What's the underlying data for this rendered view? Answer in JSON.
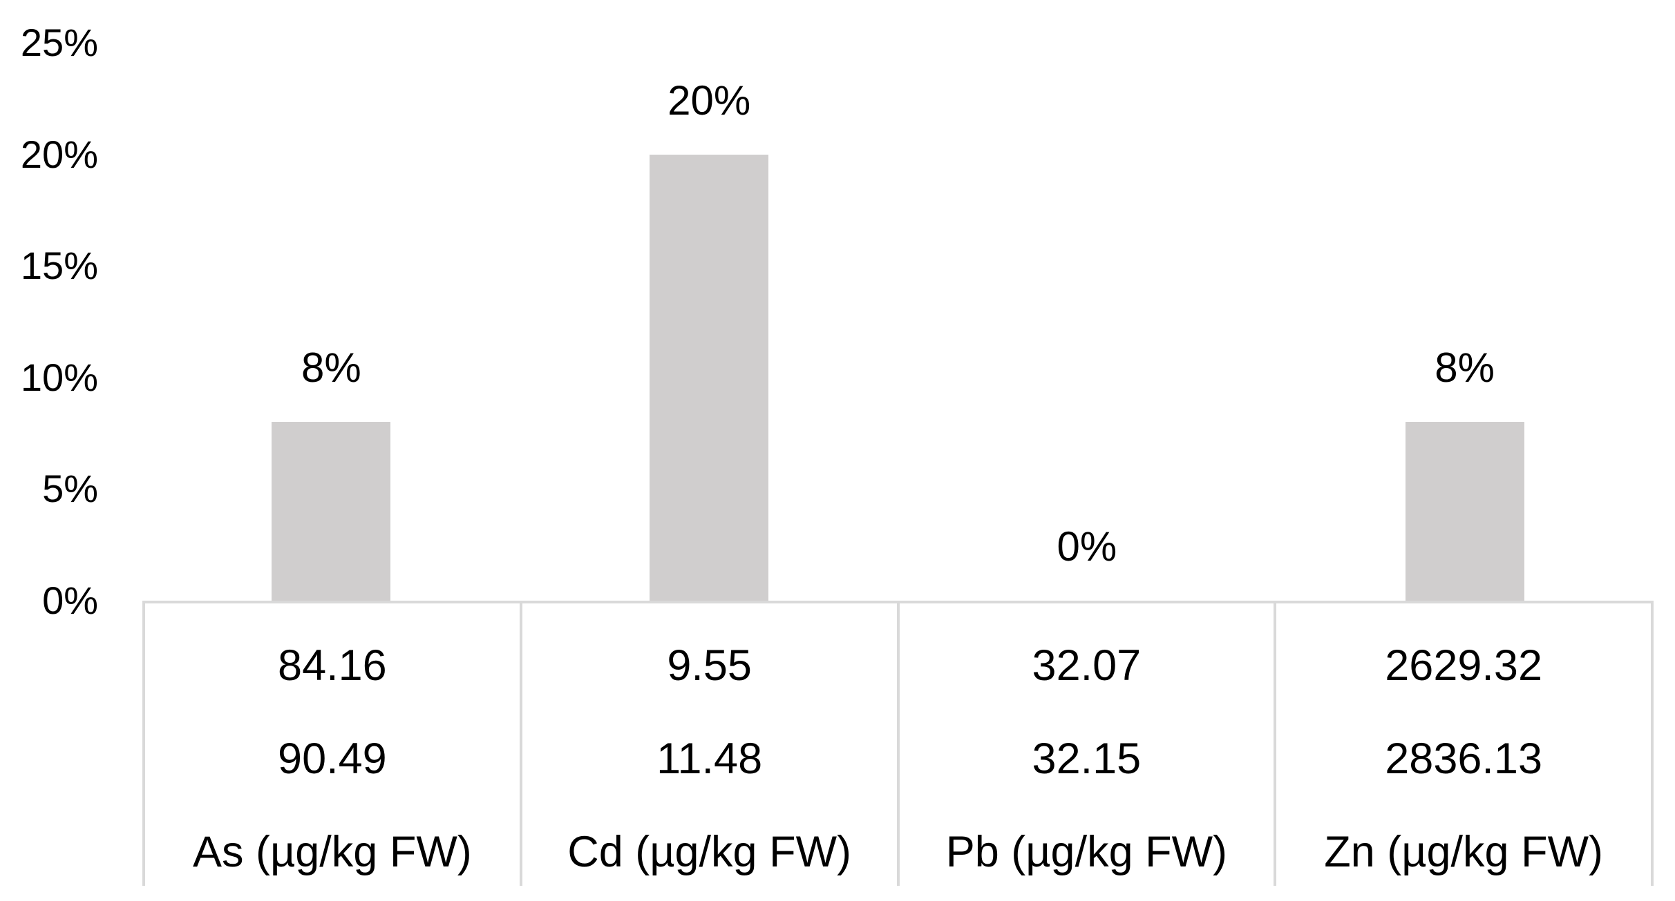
{
  "chart_data": {
    "type": "bar",
    "title": "",
    "categories": [
      "As (µg/kg FW)",
      "Cd (µg/kg FW)",
      "Pb (µg/kg FW)",
      "Zn (µg/kg FW)"
    ],
    "bar_series": {
      "name": "percent-exceedance",
      "values_percent": [
        8,
        20,
        0,
        8
      ],
      "labels": [
        "8%",
        "20%",
        "0%",
        "8%"
      ]
    },
    "series": [
      {
        "name": "table-row-1",
        "values": [
          84.16,
          9.55,
          32.07,
          2629.32
        ]
      },
      {
        "name": "table-row-2",
        "values": [
          90.49,
          11.48,
          32.15,
          2836.13
        ]
      }
    ],
    "y_axis": {
      "ylim": [
        0,
        25
      ],
      "tick_step": 5,
      "ticks_percent": [
        0,
        5,
        10,
        15,
        20,
        25
      ],
      "tick_labels": [
        "0%",
        "5%",
        "10%",
        "15%",
        "20%",
        "25%"
      ]
    },
    "legend": "none",
    "gridlines": "off"
  },
  "colors": {
    "bar_fill": "#d0cece",
    "table_border": "#d9d9d9",
    "text": "#000000",
    "background": "#ffffff"
  }
}
